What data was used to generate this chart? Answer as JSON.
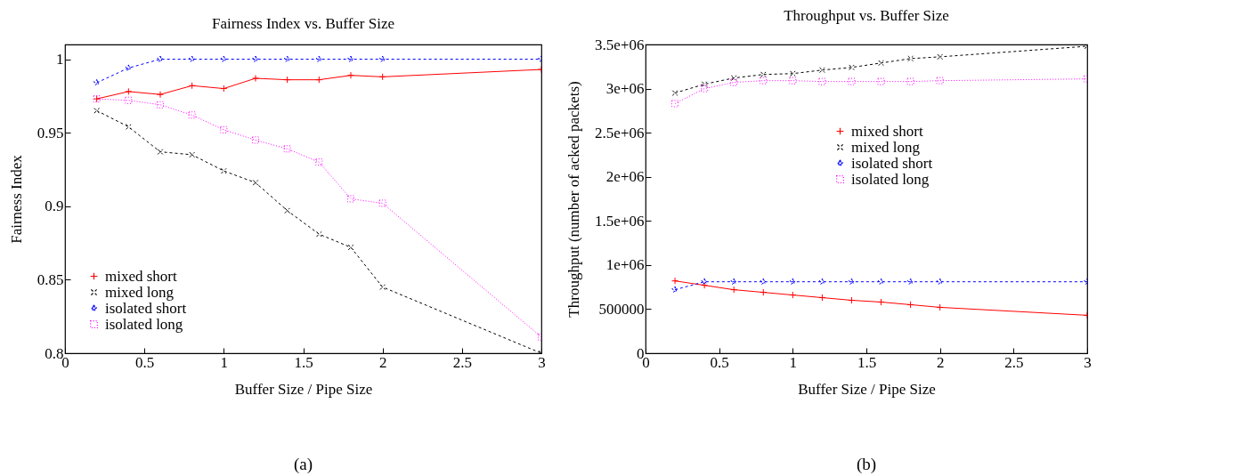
{
  "chart_data": [
    {
      "type": "line",
      "title": "Fairness Index vs. Buffer Size",
      "xlabel": "Buffer Size / Pipe Size",
      "ylabel": "Fairness Index",
      "x": [
        0.2,
        0.4,
        0.6,
        0.8,
        1.0,
        1.2,
        1.4,
        1.6,
        1.8,
        2.0,
        3.0
      ],
      "series": [
        {
          "name": "mixed short",
          "color": "#ff0000",
          "marker": "cross",
          "line_style": "solid",
          "values": [
            0.973,
            0.978,
            0.976,
            0.982,
            0.98,
            0.987,
            0.986,
            0.986,
            0.989,
            0.988,
            0.993
          ]
        },
        {
          "name": "mixed long",
          "color": "#000000",
          "marker": "x",
          "line_style": "dashed",
          "values": [
            0.965,
            0.954,
            0.937,
            0.935,
            0.924,
            0.916,
            0.897,
            0.881,
            0.872,
            0.845,
            0.8
          ]
        },
        {
          "name": "isolated short",
          "color": "#0000ff",
          "marker": "star",
          "line_style": "dashed",
          "values": [
            0.984,
            0.994,
            1.0,
            1.0,
            1.0,
            1.0,
            1.0,
            1.0,
            1.0,
            1.0,
            1.0
          ]
        },
        {
          "name": "isolated long",
          "color": "#ff00ff",
          "marker": "square",
          "line_style": "dotted",
          "values": [
            0.973,
            0.972,
            0.969,
            0.962,
            0.952,
            0.945,
            0.939,
            0.93,
            0.905,
            0.902,
            0.811
          ]
        }
      ],
      "xlim": [
        0,
        3
      ],
      "xticks": [
        0,
        0.5,
        1,
        1.5,
        2,
        2.5,
        3
      ],
      "ylim": [
        0.8,
        1.01
      ],
      "yticks": [
        0.8,
        0.85,
        0.9,
        0.95,
        1
      ],
      "grid": false,
      "legend": "bottom left",
      "annotations": [
        "(a)"
      ]
    },
    {
      "type": "line",
      "title": "Throughput vs. Buffer Size",
      "xlabel": "Buffer Size / Pipe Size",
      "ylabel": "Throughput (number of acked packets)",
      "x": [
        0.2,
        0.4,
        0.6,
        0.8,
        1.0,
        1.2,
        1.4,
        1.6,
        1.8,
        2.0,
        3.0
      ],
      "series": [
        {
          "name": "mixed short",
          "color": "#ff0000",
          "marker": "cross",
          "line_style": "solid",
          "values": [
            820000,
            770000,
            720000,
            690000,
            660000,
            630000,
            600000,
            580000,
            550000,
            520000,
            430000
          ]
        },
        {
          "name": "mixed long",
          "color": "#000000",
          "marker": "x",
          "line_style": "dashed",
          "values": [
            2950000,
            3050000,
            3120000,
            3160000,
            3170000,
            3210000,
            3240000,
            3290000,
            3340000,
            3360000,
            3480000
          ]
        },
        {
          "name": "isolated short",
          "color": "#0000ff",
          "marker": "star",
          "line_style": "dashed",
          "values": [
            720000,
            810000,
            810000,
            810000,
            810000,
            810000,
            810000,
            810000,
            810000,
            810000,
            810000
          ]
        },
        {
          "name": "isolated long",
          "color": "#ff00ff",
          "marker": "square",
          "line_style": "dotted",
          "values": [
            2830000,
            3000000,
            3070000,
            3090000,
            3090000,
            3080000,
            3080000,
            3080000,
            3080000,
            3090000,
            3110000
          ]
        }
      ],
      "xlim": [
        0,
        3
      ],
      "xticks": [
        0,
        0.5,
        1,
        1.5,
        2,
        2.5,
        3
      ],
      "ylim": [
        0,
        3500000
      ],
      "yticks": [
        0,
        500000,
        {
          "value": 1000000,
          "label": "1e+06"
        },
        {
          "value": 1500000,
          "label": "1.5e+06"
        },
        {
          "value": 2000000,
          "label": "2e+06"
        },
        {
          "value": 2500000,
          "label": "2.5e+06"
        },
        {
          "value": 3000000,
          "label": "3e+06"
        },
        {
          "value": 3500000,
          "label": "3.5e+06"
        }
      ],
      "grid": false,
      "legend": "right",
      "annotations": [
        "(b)"
      ]
    }
  ]
}
